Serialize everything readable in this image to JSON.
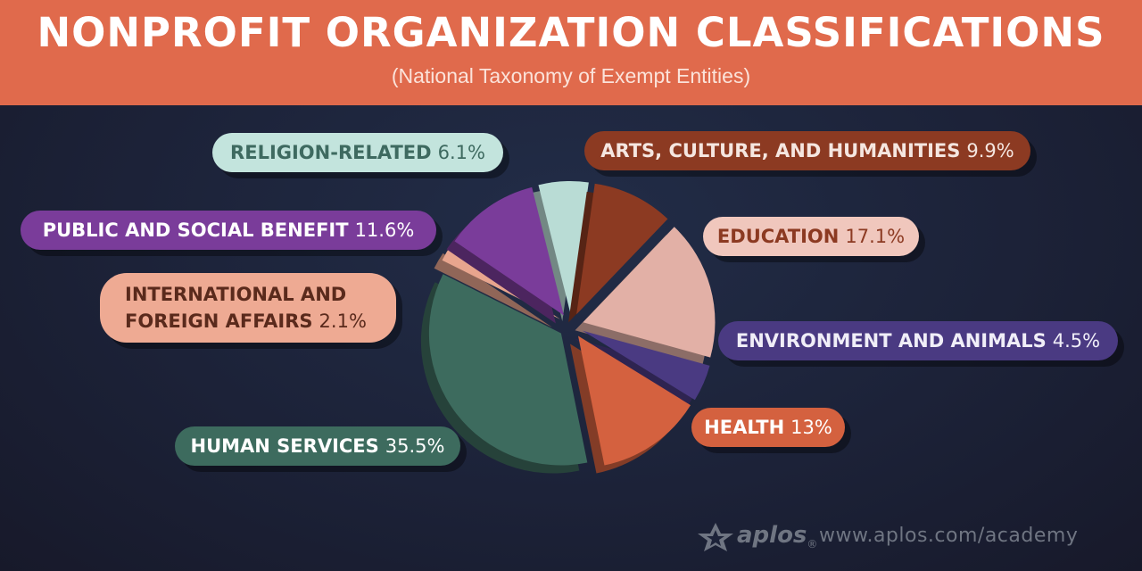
{
  "header": {
    "title": "NONPROFIT ORGANIZATION CLASSIFICATIONS",
    "subtitle": "(National Taxonomy of Exempt Entities)"
  },
  "chart_data": {
    "type": "pie",
    "title": "NONPROFIT ORGANIZATION CLASSIFICATIONS",
    "subtitle": "(National Taxonomy of Exempt Entities)",
    "series": [
      {
        "name": "RELIGION-RELATED",
        "value": 6.1,
        "label": "6.1%",
        "color": "#b9dcd5",
        "text_color": "#3e6a60"
      },
      {
        "name": "ARTS, CULTURE, AND HUMANITIES",
        "value": 9.9,
        "label": "9.9%",
        "color": "#8c3a22",
        "text_color": "#f5e6e0"
      },
      {
        "name": "EDUCATION",
        "value": 17.1,
        "label": "17.1%",
        "color": "#e2b0a6",
        "text_color": "#8c3a22"
      },
      {
        "name": "ENVIRONMENT AND ANIMALS",
        "value": 4.5,
        "label": "4.5%",
        "color": "#4a3a82",
        "text_color": "#f0eef8"
      },
      {
        "name": "HEALTH",
        "value": 13,
        "label": "13%",
        "color": "#d4613f",
        "text_color": "#ffffff"
      },
      {
        "name": "HUMAN SERVICES",
        "value": 35.5,
        "label": "35.5%",
        "color": "#3d6b5e",
        "text_color": "#ffffff"
      },
      {
        "name": "INTERNATIONAL AND FOREIGN AFFAIRS",
        "value": 2.1,
        "label": "2.1%",
        "color": "#e8a58e",
        "text_color": "#5a2a1c"
      },
      {
        "name": "PUBLIC AND SOCIAL BENEFIT",
        "value": 11.6,
        "label": "11.6%",
        "color": "#7a3c9a",
        "text_color": "#ffffff"
      }
    ],
    "legend": "labels around pie"
  },
  "labels": {
    "religion": {
      "name": "RELIGION-RELATED",
      "pct": "6.1%"
    },
    "arts": {
      "name": "ARTS, CULTURE, AND HUMANITIES",
      "pct": "9.9%"
    },
    "education": {
      "name": "EDUCATION",
      "pct": "17.1%"
    },
    "environment": {
      "name": "ENVIRONMENT AND ANIMALS",
      "pct": "4.5%"
    },
    "health": {
      "name": "HEALTH",
      "pct": "13%"
    },
    "human": {
      "name": "HUMAN SERVICES",
      "pct": "35.5%"
    },
    "international": {
      "line1": "INTERNATIONAL AND",
      "line2": "FOREIGN AFFAIRS",
      "pct": "2.1%"
    },
    "public": {
      "name": "PUBLIC AND SOCIAL BENEFIT",
      "pct": "11.6%"
    }
  },
  "footer": {
    "logo_text": "aplos",
    "registered": "®",
    "url": "www.aplos.com/academy"
  },
  "colors": {
    "header_bg": "#e06a4c",
    "background": "#1c2238"
  }
}
